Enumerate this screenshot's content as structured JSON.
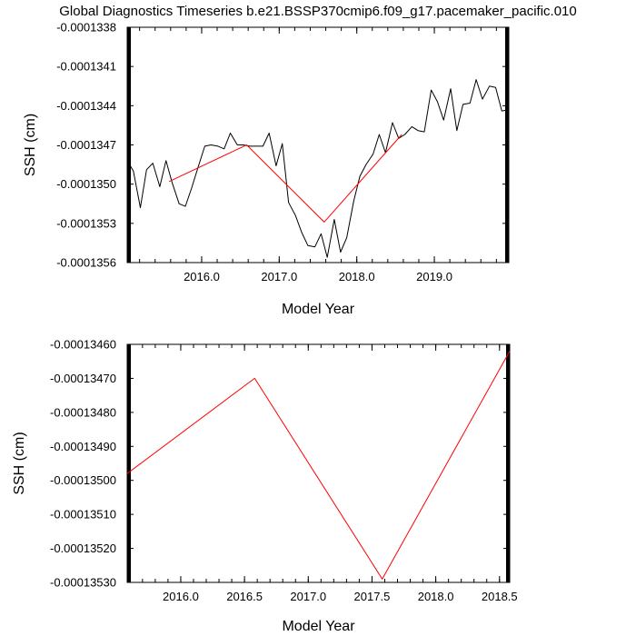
{
  "title": "Global Diagnostics Timeseries b.e21.BSSP370cmip6.f09_g17.pacemaker_pacific.010",
  "colors": {
    "monthly": "#000000",
    "annual": "#ff0000",
    "axes": "#000000"
  },
  "chart_data": [
    {
      "type": "line",
      "xlabel": "Model Year",
      "ylabel": "SSH (cm)",
      "xlim": [
        2015.04,
        2019.96
      ],
      "ylim": [
        -0.0001356,
        -0.0001338
      ],
      "x_ticks": [
        2016.0,
        2017.0,
        2018.0,
        2019.0
      ],
      "x_tick_labels": [
        "2016.0",
        "2017.0",
        "2018.0",
        "2019.0"
      ],
      "x_minor_step": 0.2,
      "y_ticks": [
        -0.0001338,
        -0.0001341,
        -0.0001344,
        -0.0001347,
        -0.000135,
        -0.0001353,
        -0.0001356
      ],
      "y_tick_labels": [
        "-0.0001338",
        "-0.0001341",
        "-0.0001344",
        "-0.0001347",
        "-0.0001350",
        "-0.0001353",
        "-0.0001356"
      ],
      "y_minor_step": 6e-10,
      "grid": false,
      "series": [
        {
          "color": "#000000",
          "x": [
            2015.04,
            2015.12,
            2015.21,
            2015.29,
            2015.37,
            2015.46,
            2015.54,
            2015.62,
            2015.71,
            2015.79,
            2015.87,
            2015.96,
            2016.04,
            2016.12,
            2016.21,
            2016.29,
            2016.37,
            2016.46,
            2016.54,
            2016.62,
            2016.71,
            2016.79,
            2016.87,
            2016.96,
            2017.04,
            2017.12,
            2017.21,
            2017.29,
            2017.37,
            2017.46,
            2017.54,
            2017.62,
            2017.71,
            2017.79,
            2017.87,
            2017.96,
            2018.04,
            2018.12,
            2018.21,
            2018.29,
            2018.37,
            2018.46,
            2018.54,
            2018.62,
            2018.71,
            2018.79,
            2018.87,
            2018.96,
            2019.04,
            2019.12,
            2019.21,
            2019.29,
            2019.37,
            2019.46,
            2019.54,
            2019.62,
            2019.71,
            2019.79,
            2019.87,
            2019.96
          ],
          "values": [
            -0.00013482,
            -0.0001349,
            -0.00013518,
            -0.00013489,
            -0.00013484,
            -0.00013502,
            -0.00013482,
            -0.00013499,
            -0.00013515,
            -0.00013517,
            -0.00013503,
            -0.00013486,
            -0.00013471,
            -0.0001347,
            -0.00013471,
            -0.00013473,
            -0.00013461,
            -0.0001347,
            -0.0001347,
            -0.00013471,
            -0.00013471,
            -0.00013471,
            -0.00013461,
            -0.00013486,
            -0.00013469,
            -0.00013514,
            -0.00013524,
            -0.00013537,
            -0.00013547,
            -0.00013548,
            -0.00013538,
            -0.00013556,
            -0.00013527,
            -0.00013552,
            -0.00013541,
            -0.00013513,
            -0.00013494,
            -0.00013485,
            -0.00013477,
            -0.00013462,
            -0.00013476,
            -0.00013453,
            -0.00013465,
            -0.00013462,
            -0.00013456,
            -0.00013459,
            -0.0001346,
            -0.00013428,
            -0.00013437,
            -0.00013451,
            -0.00013427,
            -0.00013459,
            -0.00013439,
            -0.00013438,
            -0.0001342,
            -0.00013435,
            -0.00013425,
            -0.00013426,
            -0.00013444,
            -0.00013443
          ]
        },
        {
          "color": "#ff0000",
          "x": [
            2015.58,
            2016.58,
            2017.58,
            2018.58
          ],
          "values": [
            -0.00013498,
            -0.0001347,
            -0.00013529,
            -0.00013462
          ]
        }
      ]
    },
    {
      "type": "line",
      "xlabel": "Model Year",
      "ylabel": "SSH (cm)",
      "xlim": [
        2015.58,
        2018.58
      ],
      "ylim": [
        -0.0001353,
        -0.0001346
      ],
      "x_ticks": [
        2016.0,
        2016.5,
        2017.0,
        2017.5,
        2018.0,
        2018.5
      ],
      "x_tick_labels": [
        "2016.0",
        "2016.5",
        "2017.0",
        "2017.5",
        "2018.0",
        "2018.5"
      ],
      "x_minor_step": 0.1,
      "y_ticks": [
        -0.0001346,
        -0.0001347,
        -0.0001348,
        -0.0001349,
        -0.000135,
        -0.0001351,
        -0.0001352,
        -0.0001353
      ],
      "y_tick_labels": [
        "-0.00013460",
        "-0.00013470",
        "-0.00013480",
        "-0.00013490",
        "-0.00013500",
        "-0.00013510",
        "-0.00013520",
        "-0.00013530"
      ],
      "y_minor_step": 2e-11,
      "grid": false,
      "series": [
        {
          "color": "#ff0000",
          "x": [
            2015.58,
            2016.58,
            2017.58,
            2018.58
          ],
          "values": [
            -0.00013498,
            -0.0001347,
            -0.00013529,
            -0.00013462
          ]
        }
      ]
    }
  ]
}
